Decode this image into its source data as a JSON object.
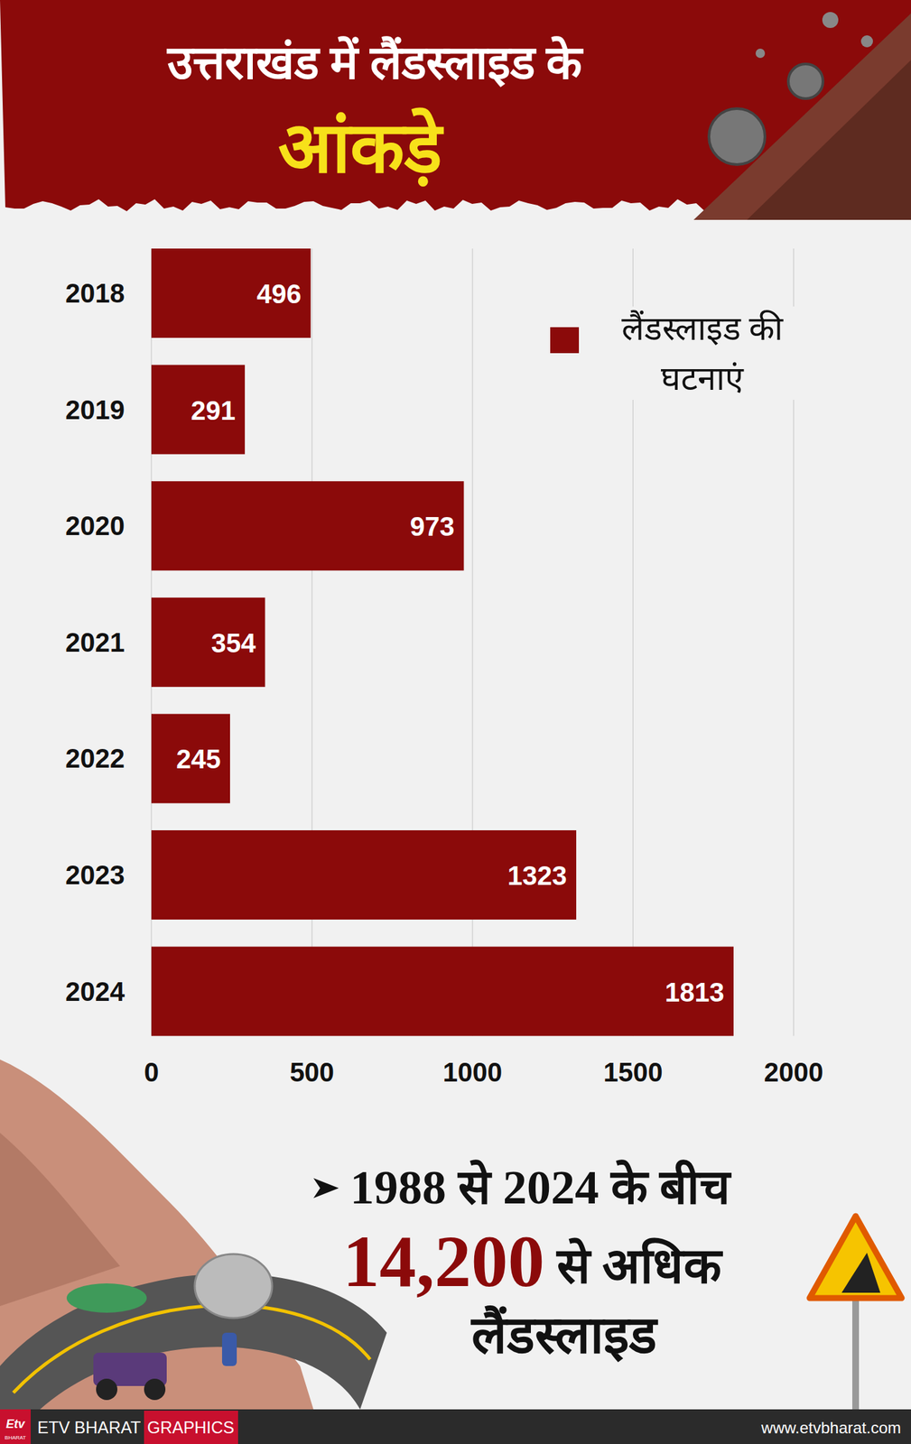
{
  "chart_data": {
    "type": "bar",
    "title": "उत्तराखंड में लैंडस्लाइड के",
    "subtitle": "आंकड़े",
    "orientation": "horizontal",
    "categories": [
      "2018",
      "2019",
      "2020",
      "2021",
      "2022",
      "2023",
      "2024"
    ],
    "series": [
      {
        "name": "लैंडस्लाइड की घटनाएं",
        "color": "#8b0a0a",
        "values": [
          496,
          291,
          973,
          354,
          245,
          1323,
          1813
        ]
      }
    ],
    "xlim": [
      0,
      2000
    ],
    "xticks": [
      0,
      500,
      1000,
      1500,
      2000
    ],
    "grid": true,
    "data_labels": true,
    "legend": "top-right",
    "annotations": [
      "1988 से 2024 के बीच",
      "14,200",
      "से अधिक",
      "लैंडस्लाइड"
    ]
  },
  "footer": {
    "logo": "Etv",
    "logo_sub": "BHARAT",
    "brand": "ETV BHARAT",
    "section": "GRAPHICS",
    "url": "www.etvbharat.com"
  }
}
